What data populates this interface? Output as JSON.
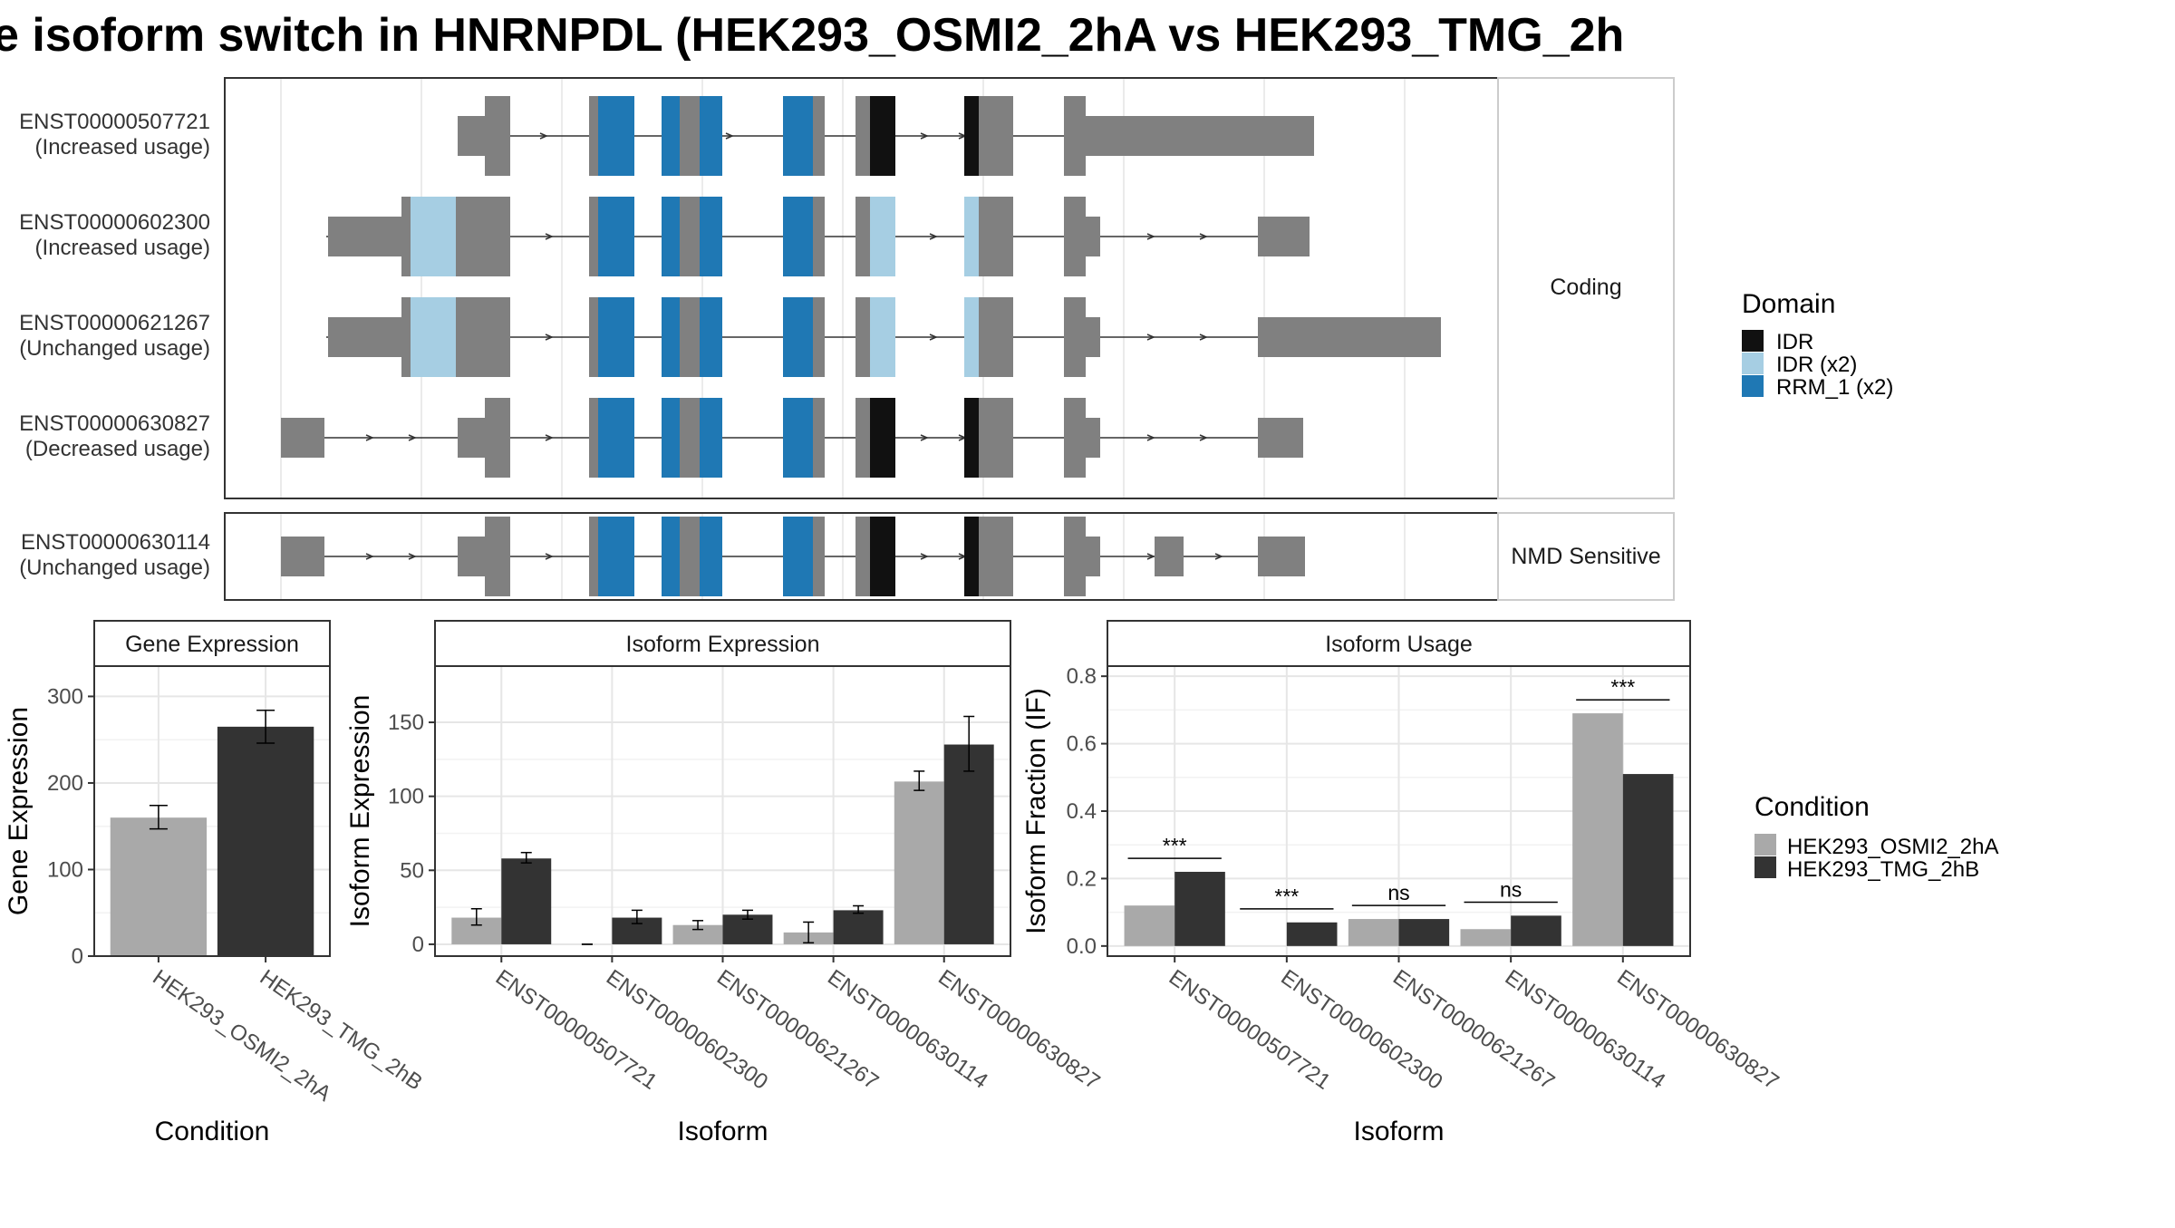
{
  "title": "e isoform switch in HNRNPDL (HEK293_OSMI2_2hA vs HEK293_TMG_2h",
  "colors": {
    "exon": "#808080",
    "idr": "#111111",
    "idr_x2": "#a6cee3",
    "rrm": "#1f78b4",
    "cond_a": "#a9a9a9",
    "cond_b": "#333333"
  },
  "transcripts": {
    "coding_strip": "Coding",
    "nmd_strip": "NMD Sensitive",
    "coding": [
      {
        "id": "ENST00000507721",
        "usage": "(Increased usage)"
      },
      {
        "id": "ENST00000602300",
        "usage": "(Increased usage)"
      },
      {
        "id": "ENST00000621267",
        "usage": "(Unchanged usage)"
      },
      {
        "id": "ENST00000630827",
        "usage": "(Decreased usage)"
      }
    ],
    "nmd": [
      {
        "id": "ENST00000630114",
        "usage": "(Unchanged usage)"
      }
    ]
  },
  "domain_legend": {
    "title": "Domain",
    "items": [
      {
        "label": "IDR",
        "color": "#111111"
      },
      {
        "label": "IDR (x2)",
        "color": "#a6cee3"
      },
      {
        "label": "RRM_1 (x2)",
        "color": "#1f78b4"
      }
    ]
  },
  "condition_legend": {
    "title": "Condition",
    "items": [
      {
        "label": "HEK293_OSMI2_2hA",
        "color": "#a9a9a9"
      },
      {
        "label": "HEK293_TMG_2hB",
        "color": "#333333"
      }
    ]
  },
  "chart_data": [
    {
      "type": "bar",
      "title": "Gene Expression",
      "xlabel": "Condition",
      "ylabel": "Gene Expression",
      "categories": [
        "HEK293_OSMI2_2hA",
        "HEK293_TMG_2hB"
      ],
      "values": [
        160,
        265
      ],
      "errors": [
        [
          147,
          174
        ],
        [
          246,
          284
        ]
      ],
      "ylim": [
        0,
        335
      ],
      "yticks": [
        0,
        100,
        200,
        300
      ]
    },
    {
      "type": "bar",
      "title": "Isoform Expression",
      "xlabel": "Isoform",
      "ylabel": "Isoform Expression",
      "categories": [
        "ENST00000507721",
        "ENST00000602300",
        "ENST00000621267",
        "ENST00000630114",
        "ENST00000630827"
      ],
      "series": [
        {
          "name": "HEK293_OSMI2_2hA",
          "values": [
            18,
            0,
            13,
            8,
            110
          ],
          "errors": [
            [
              13,
              24
            ],
            [
              0,
              0
            ],
            [
              10,
              16
            ],
            [
              1,
              15
            ],
            [
              104,
              117
            ]
          ]
        },
        {
          "name": "HEK293_TMG_2hB",
          "values": [
            58,
            18,
            20,
            23,
            135
          ],
          "errors": [
            [
              55,
              62
            ],
            [
              14,
              23
            ],
            [
              17,
              23
            ],
            [
              21,
              26
            ],
            [
              117,
              154
            ]
          ]
        }
      ],
      "ylim": [
        -8,
        188
      ],
      "yticks": [
        0,
        50,
        100,
        150
      ]
    },
    {
      "type": "bar",
      "title": "Isoform Usage",
      "xlabel": "Isoform",
      "ylabel": "Isoform Fraction (IF)",
      "categories": [
        "ENST00000507721",
        "ENST00000602300",
        "ENST00000621267",
        "ENST00000630114",
        "ENST00000630827"
      ],
      "series": [
        {
          "name": "HEK293_OSMI2_2hA",
          "values": [
            0.12,
            0.0,
            0.08,
            0.05,
            0.69
          ]
        },
        {
          "name": "HEK293_TMG_2hB",
          "values": [
            0.22,
            0.07,
            0.08,
            0.09,
            0.51
          ]
        }
      ],
      "significance": [
        "***",
        "***",
        "ns",
        "ns",
        "***"
      ],
      "ylim": [
        -0.03,
        0.83
      ],
      "yticks": [
        0.0,
        0.2,
        0.4,
        0.6,
        0.8
      ],
      "ytick_labels": [
        "0.0",
        "0.2",
        "0.4",
        "0.6",
        "0.8"
      ]
    }
  ]
}
